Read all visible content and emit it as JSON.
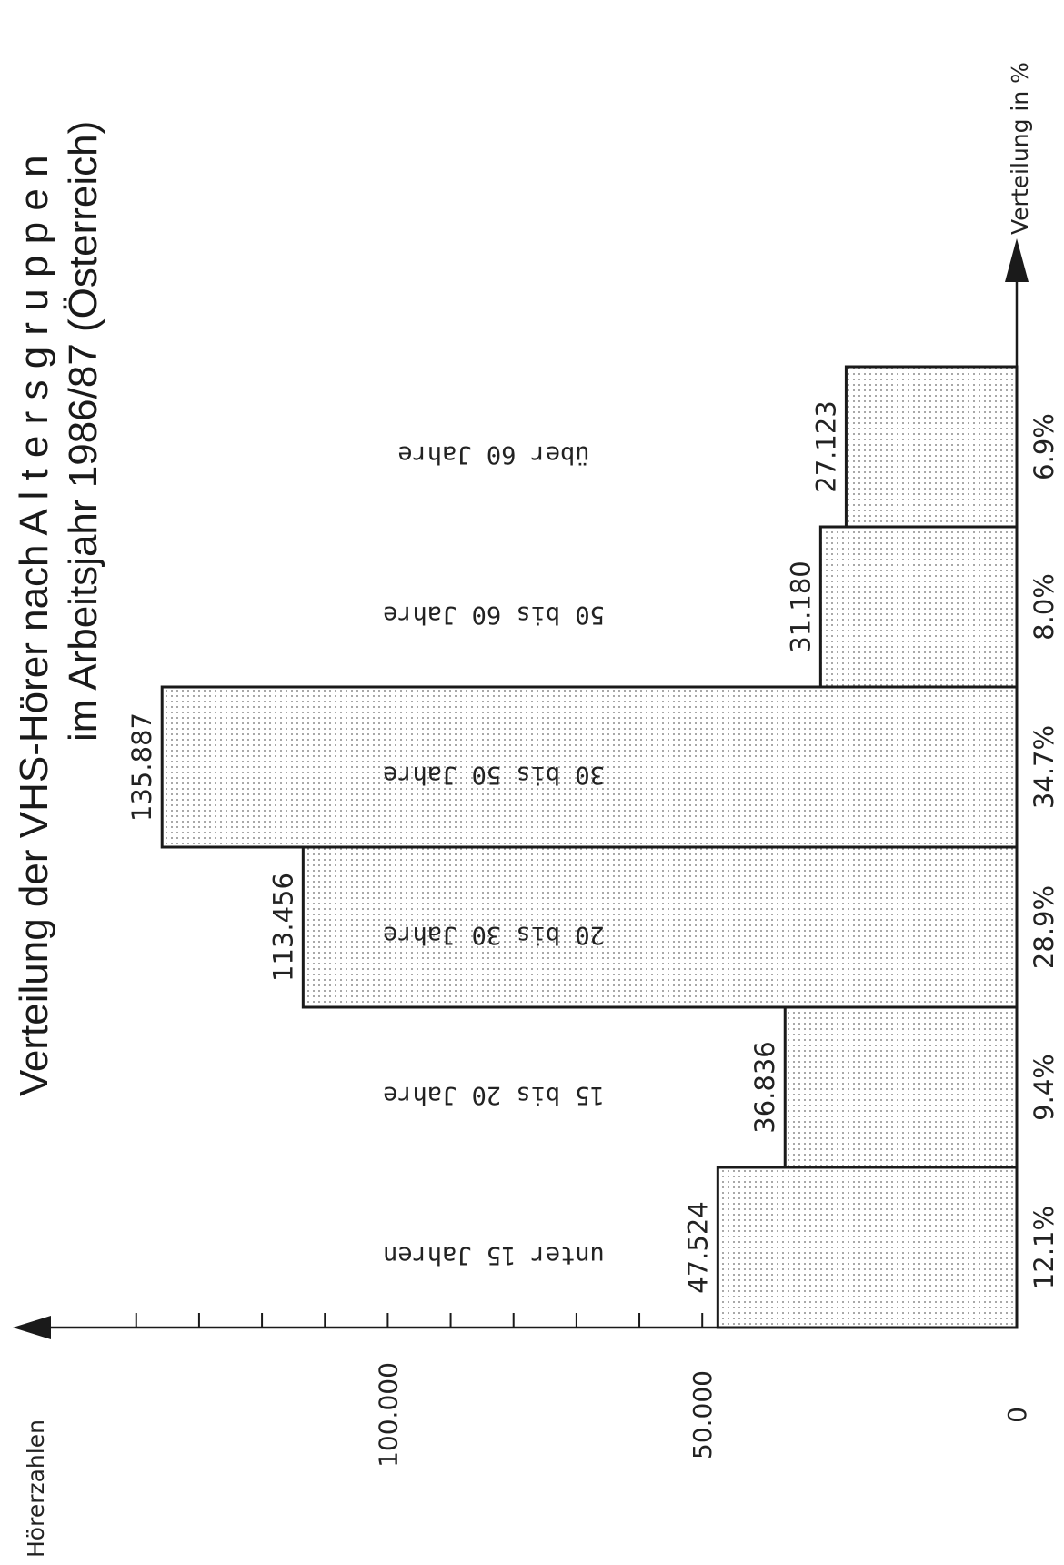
{
  "chart_data": {
    "type": "bar",
    "title": "Verteilung der VHS-Hörer nach A l t e r s g r u p p e n",
    "subtitle": "im Arbeitsjahr 1986/87 (Österreich)",
    "ylabel": "Hörerzahlen",
    "xlabel": "Verteilung in %",
    "categories": [
      "unter 15 Jahren",
      "15 bis 20 Jahre",
      "20 bis 30 Jahre",
      "30 bis 50 Jahre",
      "50 bis 60 Jahre",
      "über 60 Jahre"
    ],
    "values": [
      47524,
      36836,
      113456,
      135887,
      31180,
      27123
    ],
    "value_labels": [
      "47.524",
      "36.836",
      "113.456",
      "135.887",
      "31.180",
      "27.123"
    ],
    "percent_labels": [
      "12.1%",
      "9.4%",
      "28.9%",
      "34.7%",
      "8.0%",
      "6.9%"
    ],
    "tick_labels": [
      "0",
      "50.000",
      "100.000"
    ],
    "tick_values": [
      0,
      50000,
      100000
    ],
    "ylim": [
      0,
      140000
    ],
    "minor_tick_step": 10000,
    "grid": false,
    "bar_pattern": "dotted"
  }
}
